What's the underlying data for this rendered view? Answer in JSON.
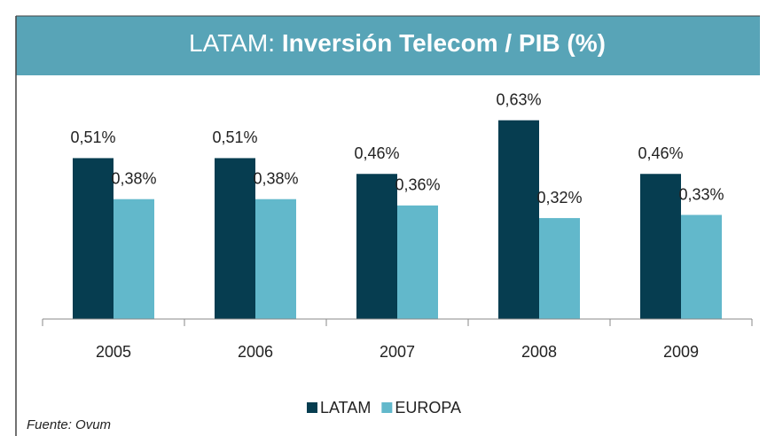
{
  "chart_data": {
    "type": "bar",
    "title_region": "LATAM:",
    "title": "Inversión Telecom / PIB (%)",
    "categories": [
      "2005",
      "2006",
      "2007",
      "2008",
      "2009"
    ],
    "series": [
      {
        "name": "LATAM",
        "color": "#063d50",
        "values": [
          0.51,
          0.51,
          0.46,
          0.63,
          0.46
        ],
        "value_labels": [
          "0,51%",
          "0,51%",
          "0,46%",
          "0,63%",
          "0,46%"
        ]
      },
      {
        "name": "EUROPA",
        "color": "#62b8cb",
        "values": [
          0.38,
          0.38,
          0.36,
          0.32,
          0.33
        ],
        "value_labels": [
          "0,38%",
          "0,38%",
          "0,36%",
          "0,32%",
          "0,33%"
        ]
      }
    ],
    "ylim": [
      0,
      0.75
    ],
    "source": "Fuente: Ovum"
  }
}
